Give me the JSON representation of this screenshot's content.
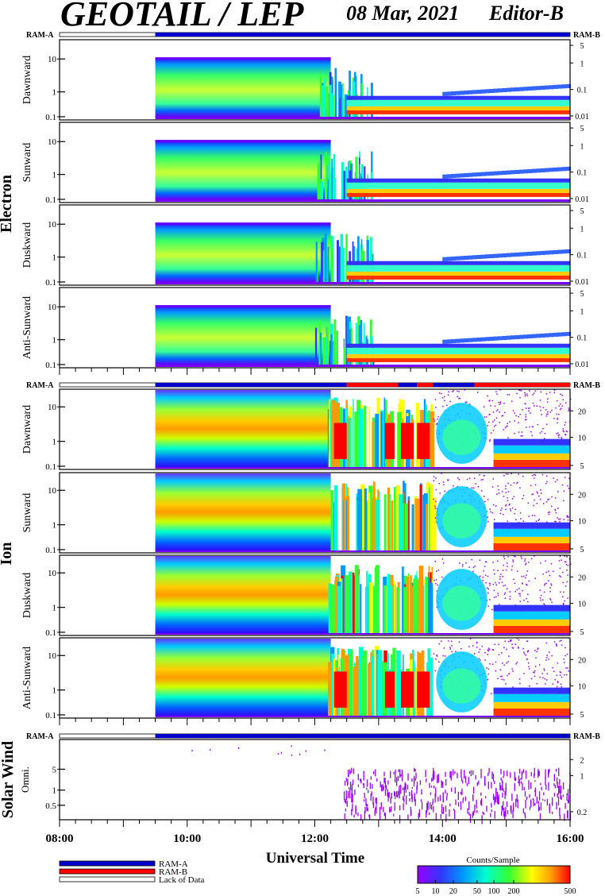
{
  "header": {
    "title": "GEOTAIL / LEP",
    "date": "08 Mar, 2021",
    "editor": "Editor-B"
  },
  "colors": {
    "ram_a": "#0000cc",
    "ram_b": "#ff0000",
    "lack": "#ffffff",
    "scale": [
      "#9900ff",
      "#3333ff",
      "#0099ff",
      "#00ffcc",
      "#33ff33",
      "#ffff00",
      "#ff9900",
      "#ff0000"
    ]
  },
  "status_labels": {
    "left": "RAM-A",
    "right": "RAM-B"
  },
  "chart_data": {
    "type": "heatmap",
    "title": "GEOTAIL / LEP",
    "xlabel": "Universal Time",
    "x_ticks": [
      "08:00",
      "10:00",
      "12:00",
      "14:00",
      "16:00"
    ],
    "x_range_hours": [
      8,
      16
    ],
    "data_start_hour": 9.5,
    "groups": [
      {
        "name": "Electron",
        "panels": [
          {
            "label": "Dawnward",
            "left_ticks": [
              "10",
              "1",
              "0.1"
            ],
            "right_ticks": [
              "5",
              "1",
              "0.1",
              "0.01"
            ]
          },
          {
            "label": "Sunward",
            "left_ticks": [
              "10",
              "1",
              "0.1"
            ],
            "right_ticks": [
              "5",
              "1",
              "0.1",
              "0.01"
            ]
          },
          {
            "label": "Duskward",
            "left_ticks": [
              "10",
              "1",
              "0.1"
            ],
            "right_ticks": [
              "5",
              "1",
              "0.1",
              "0.01"
            ]
          },
          {
            "label": "Anti-Sunward",
            "left_ticks": [
              "10",
              "1",
              "0.1"
            ],
            "right_ticks": [
              "5",
              "1",
              "0.1",
              "0.01"
            ]
          }
        ]
      },
      {
        "name": "Ion",
        "panels": [
          {
            "label": "Dawnward",
            "left_ticks": [
              "10",
              "1",
              "0.1"
            ],
            "right_ticks": [
              "20",
              "10",
              "5"
            ]
          },
          {
            "label": "Sunward",
            "left_ticks": [
              "10",
              "1",
              "0.1"
            ],
            "right_ticks": [
              "20",
              "10",
              "5"
            ]
          },
          {
            "label": "Duskward",
            "left_ticks": [
              "10",
              "1",
              "0.1"
            ],
            "right_ticks": [
              "20",
              "10",
              "5"
            ]
          },
          {
            "label": "Anti-Sunward",
            "left_ticks": [
              "10",
              "1",
              "0.1"
            ],
            "right_ticks": [
              "20",
              "10",
              "5"
            ]
          }
        ]
      },
      {
        "name": "Solar Wind",
        "panels": [
          {
            "label": "Omni.",
            "left_ticks": [
              "5",
              "1",
              "0.5"
            ],
            "right_ticks": [
              "2",
              "1",
              "0.2"
            ]
          }
        ]
      }
    ],
    "legend": {
      "items": [
        "RAM-A",
        "RAM-B",
        "Lack of Data"
      ],
      "colorbar_title": "Counts/Sample",
      "colorbar_ticks": [
        "5",
        "10",
        "20",
        "50",
        "100",
        "200",
        "500"
      ]
    }
  }
}
